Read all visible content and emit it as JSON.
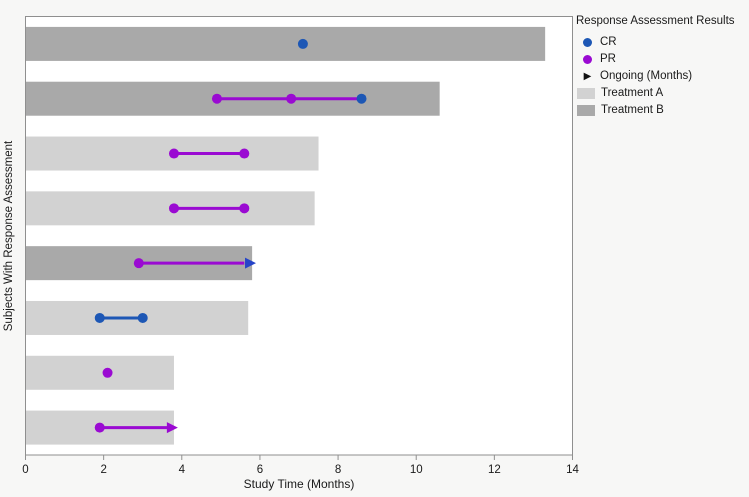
{
  "figure": {
    "background": "#f7f7f6"
  },
  "legend": {
    "title": "Response Assessment Results",
    "items": [
      {
        "label": "CR",
        "marker": "circle",
        "color_key": "CR"
      },
      {
        "label": "PR",
        "marker": "circle",
        "color_key": "PR"
      },
      {
        "label": "Ongoing (Months)",
        "marker": "arrow",
        "color_key": "ongoing"
      },
      {
        "label": "Treatment A",
        "marker": "swatch",
        "color_key": "treatment_a"
      },
      {
        "label": "Treatment B",
        "marker": "swatch",
        "color_key": "treatment_b"
      }
    ]
  },
  "chart_data": {
    "type": "bar",
    "subtype": "swimmer",
    "orientation": "horizontal",
    "title": "",
    "xlabel": "Study Time (Months)",
    "ylabel": "Subjects With Response Assessment",
    "xlim": [
      0,
      14
    ],
    "xticks": [
      0,
      2,
      4,
      6,
      8,
      10,
      12,
      14
    ],
    "grid": false,
    "legend_position": "top-right",
    "colors": {
      "CR": "#1d57b5",
      "PR": "#9a0ad2",
      "ongoing": "#111111",
      "arrow_blue": "#2544c8",
      "treatment_a": "#d2d2d2",
      "treatment_b": "#a9a9a9",
      "frame": "#8f8f8f",
      "plot_bg": "#ffffff",
      "text": "#1a1a1a"
    },
    "subjects": [
      {
        "treatment": "B",
        "bar_length": 13.3,
        "events": [
          {
            "type": "CR",
            "x": 7.1
          }
        ]
      },
      {
        "treatment": "B",
        "bar_length": 10.6,
        "segments": [
          {
            "x1": 4.9,
            "x2": 8.6,
            "color": "PR"
          }
        ],
        "events": [
          {
            "type": "PR",
            "x": 4.9
          },
          {
            "type": "PR",
            "x": 6.8
          },
          {
            "type": "CR",
            "x": 8.6
          }
        ]
      },
      {
        "treatment": "A",
        "bar_length": 7.5,
        "segments": [
          {
            "x1": 3.8,
            "x2": 5.6,
            "color": "PR"
          }
        ],
        "events": [
          {
            "type": "PR",
            "x": 3.8
          },
          {
            "type": "PR",
            "x": 5.6
          }
        ]
      },
      {
        "treatment": "A",
        "bar_length": 7.4,
        "segments": [
          {
            "x1": 3.8,
            "x2": 5.6,
            "color": "PR"
          }
        ],
        "events": [
          {
            "type": "PR",
            "x": 3.8
          },
          {
            "type": "PR",
            "x": 5.6
          }
        ]
      },
      {
        "treatment": "B",
        "bar_length": 5.8,
        "segments": [
          {
            "x1": 2.9,
            "x2": 5.6,
            "color": "PR"
          }
        ],
        "events": [
          {
            "type": "PR",
            "x": 2.9
          }
        ],
        "arrow": {
          "x": 5.9,
          "color": "arrow_blue"
        }
      },
      {
        "treatment": "A",
        "bar_length": 5.7,
        "segments": [
          {
            "x1": 1.9,
            "x2": 3.0,
            "color": "CR"
          }
        ],
        "events": [
          {
            "type": "CR",
            "x": 1.9
          },
          {
            "type": "CR",
            "x": 3.0
          }
        ]
      },
      {
        "treatment": "A",
        "bar_length": 3.8,
        "events": [
          {
            "type": "PR",
            "x": 2.1
          }
        ]
      },
      {
        "treatment": "A",
        "bar_length": 3.8,
        "segments": [
          {
            "x1": 1.9,
            "x2": 3.7,
            "color": "PR"
          }
        ],
        "events": [
          {
            "type": "PR",
            "x": 1.9
          }
        ],
        "arrow": {
          "x": 3.9,
          "color": "PR"
        }
      }
    ]
  }
}
